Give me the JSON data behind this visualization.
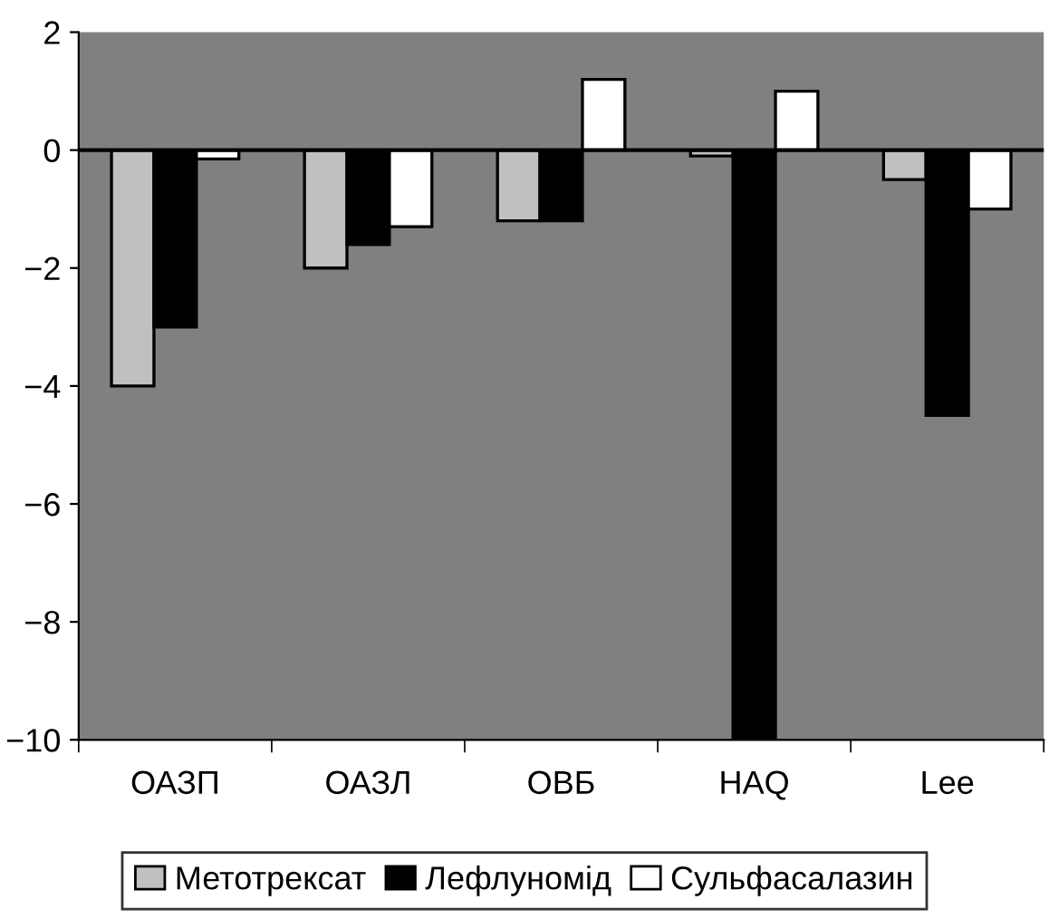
{
  "chart_data": {
    "type": "bar",
    "categories": [
      "ОАЗП",
      "ОАЗЛ",
      "ОВБ",
      "HAQ",
      "Lee"
    ],
    "series": [
      {
        "name": "Метотрексат",
        "color": "#c0c0c0",
        "values": [
          -4,
          -2,
          -1.2,
          -0.1,
          -0.5
        ]
      },
      {
        "name": "Лефлуномід",
        "color": "#000000",
        "values": [
          -3,
          -1.6,
          -1.2,
          -10,
          -4.5
        ]
      },
      {
        "name": "Сульфасалазин",
        "color": "#ffffff",
        "values": [
          -0.15,
          -1.3,
          1.2,
          1.0,
          -1.0
        ]
      }
    ],
    "ylim": [
      -10,
      2
    ],
    "yticks": [
      -10,
      -8,
      -6,
      -4,
      -2,
      0,
      2
    ],
    "ref_lines": [
      {
        "axis": "y",
        "value": 0,
        "color": "#000000",
        "line_style": "solid"
      }
    ],
    "legend": "bottom"
  }
}
